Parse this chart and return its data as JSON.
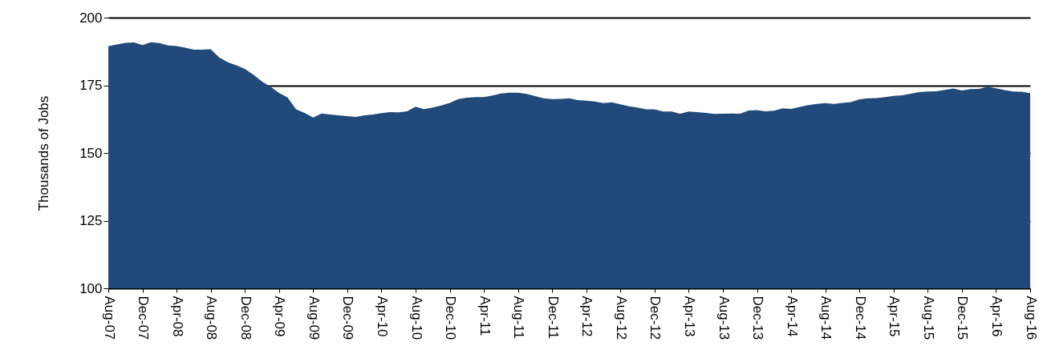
{
  "chart_data": {
    "type": "area",
    "ylabel": "Thousands of Jobs",
    "categories": [
      "Aug-07",
      null,
      null,
      null,
      "Dec-07",
      null,
      null,
      null,
      "Apr-08",
      null,
      null,
      null,
      "Aug-08",
      null,
      null,
      null,
      "Dec-08",
      null,
      null,
      null,
      "Apr-09",
      null,
      null,
      null,
      "Aug-09",
      null,
      null,
      null,
      "Dec-09",
      null,
      null,
      null,
      "Apr-10",
      null,
      null,
      null,
      "Aug-10",
      null,
      null,
      null,
      "Dec-10",
      null,
      null,
      null,
      "Apr-11",
      null,
      null,
      null,
      "Aug-11",
      null,
      null,
      null,
      "Dec-11",
      null,
      null,
      null,
      "Apr-12",
      null,
      null,
      null,
      "Aug-12",
      null,
      null,
      null,
      "Dec-12",
      null,
      null,
      null,
      "Apr-13",
      null,
      null,
      null,
      "Aug-13",
      null,
      null,
      null,
      "Dec-13",
      null,
      null,
      null,
      "Apr-14",
      null,
      null,
      null,
      "Aug-14",
      null,
      null,
      null,
      "Dec-14",
      null,
      null,
      null,
      "Apr-15",
      null,
      null,
      null,
      "Aug-15",
      null,
      null,
      null,
      "Dec-15",
      null,
      null,
      null,
      "Apr-16",
      null,
      null,
      null,
      "Aug-16"
    ],
    "series": [
      {
        "color": "#214a7b",
        "values": [
          189.4,
          190.1,
          190.7,
          190.8,
          189.9,
          190.9,
          190.6,
          189.7,
          189.5,
          188.9,
          188.2,
          188.2,
          188.3,
          185.3,
          183.5,
          182.4,
          181.1,
          178.9,
          176.4,
          174.5,
          172.2,
          170.5,
          166.1,
          164.8,
          163.1,
          164.6,
          164.2,
          163.9,
          163.6,
          163.3,
          163.9,
          164.2,
          164.7,
          165.1,
          165.0,
          165.4,
          167.1,
          166.2,
          166.8,
          167.5,
          168.5,
          169.9,
          170.4,
          170.6,
          170.6,
          171.2,
          172.0,
          172.3,
          172.3,
          171.8,
          171.0,
          170.2,
          169.9,
          170.0,
          170.2,
          169.5,
          169.3,
          169.0,
          168.4,
          168.7,
          168.0,
          167.2,
          166.8,
          166.1,
          166.1,
          165.3,
          165.3,
          164.5,
          165.3,
          165.1,
          164.8,
          164.4,
          164.5,
          164.6,
          164.5,
          165.7,
          165.8,
          165.4,
          165.6,
          166.5,
          166.3,
          167.0,
          167.7,
          168.1,
          168.4,
          168.1,
          168.5,
          168.8,
          169.8,
          170.2,
          170.3,
          170.6,
          171.1,
          171.3,
          171.9,
          172.5,
          172.7,
          172.8,
          173.3,
          173.8,
          173.1,
          173.6,
          173.7,
          174.5,
          173.9,
          173.2,
          172.7,
          172.6,
          172.1
        ]
      }
    ],
    "ylim": [
      100,
      200
    ],
    "yticks": [
      100,
      125,
      150,
      175,
      200
    ],
    "grid": "y"
  }
}
